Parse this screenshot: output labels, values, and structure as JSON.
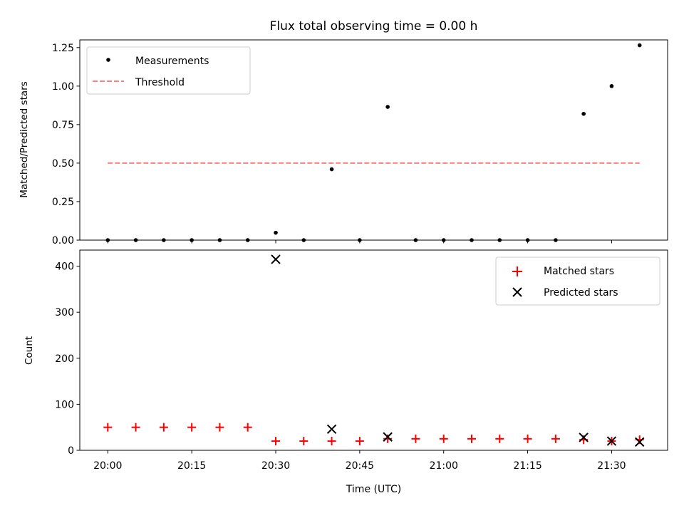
{
  "chart_data": [
    {
      "type": "scatter",
      "title": "Flux total observing time = 0.00 h",
      "xlabel": "",
      "ylabel": "Matched/Predicted stars",
      "ylim": [
        0,
        1.3
      ],
      "xlim": [
        "19:55",
        "21:40"
      ],
      "yticks": [
        0,
        0.25,
        0.5,
        0.75,
        1.0,
        1.25
      ],
      "ytick_labels": [
        "0.00",
        "0.25",
        "0.50",
        "0.75",
        "1.00",
        "1.25"
      ],
      "legend_position": "top-left",
      "grid": false,
      "series": [
        {
          "name": "Measurements",
          "kind": "scatter",
          "marker": "dot",
          "color": "#000000",
          "x": [
            "20:00",
            "20:05",
            "20:10",
            "20:15",
            "20:20",
            "20:25",
            "20:30",
            "20:35",
            "20:40",
            "20:45",
            "20:50",
            "20:55",
            "21:00",
            "21:05",
            "21:10",
            "21:15",
            "21:20",
            "21:25",
            "21:30",
            "21:35"
          ],
          "y": [
            0,
            0,
            0,
            0,
            0,
            0,
            0.048,
            0,
            0.46,
            0,
            0.865,
            0,
            0,
            0,
            0,
            0,
            0,
            0.82,
            1.0,
            1.265
          ]
        },
        {
          "name": "Threshold",
          "kind": "line",
          "style": "dashed",
          "color": "#ff7f7f",
          "x": [
            "20:00",
            "21:35"
          ],
          "y": [
            0.5,
            0.5
          ]
        }
      ]
    },
    {
      "type": "scatter",
      "title": "",
      "xlabel": "Time (UTC)",
      "ylabel": "Count",
      "ylim": [
        0,
        435
      ],
      "xlim": [
        "19:55",
        "21:40"
      ],
      "yticks": [
        0,
        100,
        200,
        300,
        400
      ],
      "ytick_labels": [
        "0",
        "100",
        "200",
        "300",
        "400"
      ],
      "xticks": [
        "20:00",
        "20:15",
        "20:30",
        "20:45",
        "21:00",
        "21:15",
        "21:30"
      ],
      "legend_position": "top-right",
      "grid": false,
      "series": [
        {
          "name": "Matched stars",
          "kind": "scatter",
          "marker": "plus",
          "color": "#ff0000",
          "x": [
            "20:00",
            "20:05",
            "20:10",
            "20:15",
            "20:20",
            "20:25",
            "20:30",
            "20:35",
            "20:40",
            "20:45",
            "20:50",
            "20:55",
            "21:00",
            "21:05",
            "21:10",
            "21:15",
            "21:20",
            "21:25",
            "21:30",
            "21:35"
          ],
          "y": [
            50,
            50,
            50,
            50,
            50,
            50,
            20,
            20,
            20,
            20,
            25,
            25,
            25,
            25,
            25,
            25,
            25,
            23,
            20,
            23
          ]
        },
        {
          "name": "Predicted stars",
          "kind": "scatter",
          "marker": "x",
          "color": "#000000",
          "x": [
            "20:30",
            "20:40",
            "20:50",
            "21:25",
            "21:30",
            "21:35"
          ],
          "y": [
            415,
            46,
            29,
            28,
            20,
            18
          ]
        }
      ]
    }
  ]
}
